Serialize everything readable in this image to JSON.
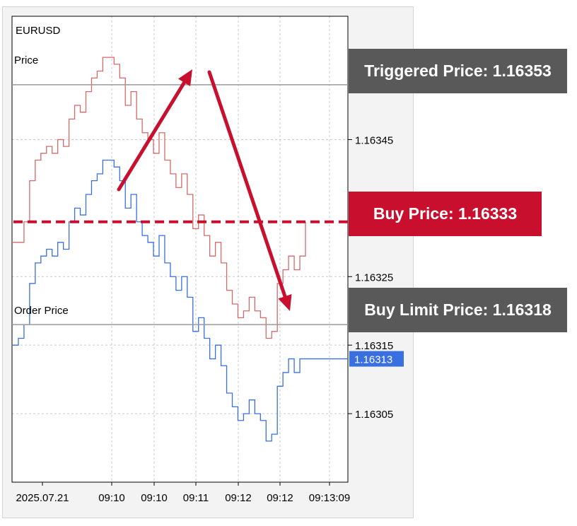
{
  "symbol": "EURUSD",
  "labels": {
    "price": "Price",
    "order_price": "Order Price"
  },
  "colors": {
    "price_line": "#d46a6a",
    "order_line": "#3a6fe0",
    "arrow": "#c8102e",
    "buy_line": "#c8102e",
    "badge_dark": "#595959",
    "badge_red": "#c8102e",
    "current_tag": "#3a6fe0"
  },
  "callouts": {
    "triggered": "Triggered Price: 1.16353",
    "buy": "Buy Price: 1.16333",
    "buy_limit": "Buy Limit Price: 1.16318"
  },
  "chart_data": {
    "type": "line",
    "title": "EURUSD",
    "ylim": [
      1.16295,
      1.16363
    ],
    "y_ticks": [
      "1.16345",
      "1.16325",
      "1.16315",
      "1.16305"
    ],
    "x_ticks": [
      "2025.07.21",
      "09:10",
      "09:10",
      "09:11",
      "09:12",
      "09:12",
      "09:13:09"
    ],
    "grid": true,
    "current_value_label": "1.16313",
    "horizontal_levels": [
      {
        "name": "Price",
        "value": 1.16353,
        "style": "solid-gray"
      },
      {
        "name": "Buy Price",
        "value": 1.16333,
        "style": "dashed-red"
      },
      {
        "name": "Order Price",
        "value": 1.16318,
        "style": "solid-gray"
      }
    ],
    "series": [
      {
        "name": "Price",
        "values": [
          1.1633,
          1.1633,
          1.16333,
          1.16339,
          1.16342,
          1.16343,
          1.16344,
          1.16343,
          1.16345,
          1.16344,
          1.16348,
          1.1635,
          1.16349,
          1.16352,
          1.16354,
          1.16355,
          1.16357,
          1.16357,
          1.16356,
          1.16354,
          1.1635,
          1.16352,
          1.16348,
          1.16346,
          1.16345,
          1.16343,
          1.16346,
          1.16342,
          1.1634,
          1.16338,
          1.1634,
          1.16337,
          1.16332,
          1.16334,
          1.16331,
          1.16328,
          1.1633,
          1.16327,
          1.16323,
          1.16321,
          1.16319,
          1.1632,
          1.16322,
          1.1632,
          1.16319,
          1.16316,
          1.16317,
          1.16324,
          1.16326,
          1.16328,
          1.16326,
          1.16328,
          1.16333
        ]
      },
      {
        "name": "Order Price",
        "values": [
          1.16315,
          1.16316,
          1.16318,
          1.16324,
          1.16327,
          1.16328,
          1.16329,
          1.16328,
          1.1633,
          1.16329,
          1.16333,
          1.16335,
          1.16334,
          1.16337,
          1.16339,
          1.1634,
          1.16342,
          1.16342,
          1.16341,
          1.16339,
          1.16335,
          1.16337,
          1.16333,
          1.16331,
          1.1633,
          1.16328,
          1.16331,
          1.16327,
          1.16325,
          1.16323,
          1.16325,
          1.16322,
          1.16317,
          1.16319,
          1.16316,
          1.16313,
          1.16315,
          1.16312,
          1.16308,
          1.16306,
          1.16304,
          1.16305,
          1.16307,
          1.16305,
          1.16304,
          1.16301,
          1.16302,
          1.16309,
          1.16311,
          1.16313,
          1.16311,
          1.16313,
          1.16313
        ]
      }
    ]
  }
}
